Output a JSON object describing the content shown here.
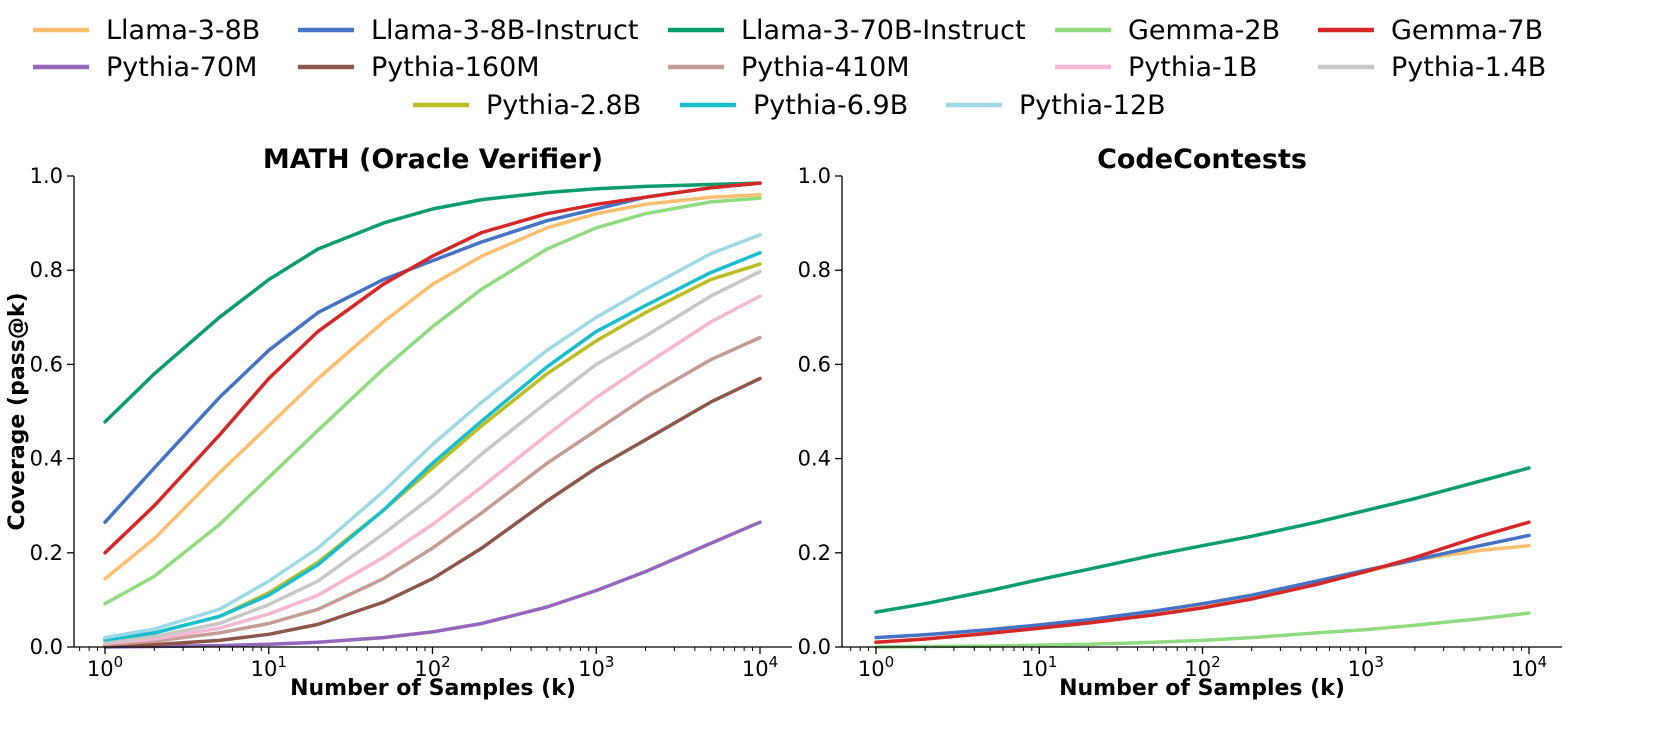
{
  "chart_data": [
    {
      "type": "line",
      "title": "MATH (Oracle Verifier)",
      "xlabel": "Number of Samples (k)",
      "ylabel": "Coverage (pass@k)",
      "xscale": "log",
      "xlim": [
        0.7,
        20000
      ],
      "ylim": [
        0,
        1.0
      ],
      "xticks": [
        {
          "base": "10",
          "exp": "0"
        },
        {
          "base": "10",
          "exp": "1"
        },
        {
          "base": "10",
          "exp": "2"
        },
        {
          "base": "10",
          "exp": "3"
        },
        {
          "base": "10",
          "exp": "4"
        }
      ],
      "yticks": [
        "0.0",
        "0.2",
        "0.4",
        "0.6",
        "0.8",
        "1.0"
      ],
      "x": [
        1,
        2,
        5,
        10,
        20,
        50,
        100,
        200,
        500,
        1000,
        2000,
        5000,
        10000
      ],
      "series": [
        {
          "name": "Llama-3-8B",
          "color": "#FDBF6F",
          "values": [
            0.145,
            0.23,
            0.37,
            0.47,
            0.57,
            0.69,
            0.77,
            0.83,
            0.89,
            0.92,
            0.94,
            0.955,
            0.96
          ]
        },
        {
          "name": "Llama-3-8B-Instruct",
          "color": "#4472C4",
          "values": [
            0.265,
            0.38,
            0.53,
            0.63,
            0.71,
            0.78,
            0.82,
            0.86,
            0.905,
            0.93,
            0.955,
            0.975,
            0.985
          ]
        },
        {
          "name": "Llama-3-70B-Instruct",
          "color": "#0A9C6E",
          "values": [
            0.478,
            0.58,
            0.7,
            0.78,
            0.845,
            0.9,
            0.93,
            0.95,
            0.965,
            0.973,
            0.978,
            0.982,
            0.985
          ]
        },
        {
          "name": "Gemma-2B",
          "color": "#90DB80",
          "values": [
            0.092,
            0.15,
            0.26,
            0.36,
            0.46,
            0.59,
            0.68,
            0.76,
            0.845,
            0.89,
            0.92,
            0.945,
            0.953
          ]
        },
        {
          "name": "Gemma-7B",
          "color": "#D62728",
          "values": [
            0.2,
            0.3,
            0.45,
            0.57,
            0.67,
            0.77,
            0.83,
            0.88,
            0.92,
            0.94,
            0.955,
            0.975,
            0.985
          ]
        },
        {
          "name": "Pythia-70M",
          "color": "#9467BD",
          "values": [
            0.0,
            0.001,
            0.003,
            0.006,
            0.01,
            0.02,
            0.032,
            0.05,
            0.085,
            0.12,
            0.16,
            0.22,
            0.265
          ]
        },
        {
          "name": "Pythia-160M",
          "color": "#8C564B",
          "values": [
            0.002,
            0.005,
            0.014,
            0.027,
            0.048,
            0.095,
            0.145,
            0.21,
            0.31,
            0.38,
            0.44,
            0.52,
            0.57
          ]
        },
        {
          "name": "Pythia-410M",
          "color": "#C49C94",
          "values": [
            0.005,
            0.012,
            0.03,
            0.05,
            0.08,
            0.145,
            0.21,
            0.285,
            0.39,
            0.46,
            0.53,
            0.61,
            0.657
          ]
        },
        {
          "name": "Pythia-1B",
          "color": "#F7B6D2",
          "values": [
            0.008,
            0.017,
            0.04,
            0.07,
            0.11,
            0.19,
            0.26,
            0.34,
            0.45,
            0.53,
            0.6,
            0.69,
            0.745
          ]
        },
        {
          "name": "Pythia-1.4B",
          "color": "#C7C7C7",
          "values": [
            0.01,
            0.022,
            0.05,
            0.09,
            0.14,
            0.24,
            0.32,
            0.41,
            0.52,
            0.6,
            0.66,
            0.745,
            0.797
          ]
        },
        {
          "name": "Pythia-2.8B",
          "color": "#BCBD22",
          "values": [
            0.015,
            0.03,
            0.065,
            0.115,
            0.18,
            0.29,
            0.38,
            0.47,
            0.58,
            0.65,
            0.71,
            0.78,
            0.813
          ]
        },
        {
          "name": "Pythia-6.9B",
          "color": "#17BECF",
          "values": [
            0.015,
            0.03,
            0.065,
            0.11,
            0.175,
            0.29,
            0.39,
            0.48,
            0.595,
            0.67,
            0.725,
            0.795,
            0.837
          ]
        },
        {
          "name": "Pythia-12B",
          "color": "#9EDAE5",
          "values": [
            0.02,
            0.038,
            0.08,
            0.14,
            0.21,
            0.33,
            0.43,
            0.52,
            0.63,
            0.7,
            0.76,
            0.835,
            0.875
          ]
        }
      ]
    },
    {
      "type": "line",
      "title": "CodeContests",
      "xlabel": "Number of Samples (k)",
      "ylabel": "",
      "xscale": "log",
      "xlim": [
        0.7,
        20000
      ],
      "ylim": [
        0,
        1.0
      ],
      "xticks": [
        {
          "base": "10",
          "exp": "0"
        },
        {
          "base": "10",
          "exp": "1"
        },
        {
          "base": "10",
          "exp": "2"
        },
        {
          "base": "10",
          "exp": "3"
        },
        {
          "base": "10",
          "exp": "4"
        }
      ],
      "yticks": [
        "0.0",
        "0.2",
        "0.4",
        "0.6",
        "0.8",
        "1.0"
      ],
      "x": [
        1,
        2,
        5,
        10,
        20,
        50,
        100,
        200,
        500,
        1000,
        2000,
        5000,
        10000
      ],
      "series": [
        {
          "name": "Llama-3-8B",
          "color": "#FDBF6F",
          "values": [
            0.01,
            0.017,
            0.03,
            0.042,
            0.053,
            0.07,
            0.085,
            0.103,
            0.135,
            0.16,
            0.185,
            0.205,
            0.215
          ]
        },
        {
          "name": "Llama-3-8B-Instruct",
          "color": "#4472C4",
          "values": [
            0.02,
            0.026,
            0.037,
            0.047,
            0.058,
            0.076,
            0.092,
            0.11,
            0.14,
            0.163,
            0.185,
            0.215,
            0.237
          ]
        },
        {
          "name": "Llama-3-70B-Instruct",
          "color": "#0A9C6E",
          "values": [
            0.074,
            0.092,
            0.12,
            0.143,
            0.165,
            0.195,
            0.215,
            0.235,
            0.265,
            0.29,
            0.315,
            0.352,
            0.38
          ]
        },
        {
          "name": "Gemma-2B",
          "color": "#90DB80",
          "values": [
            0.0,
            0.001,
            0.002,
            0.004,
            0.006,
            0.01,
            0.014,
            0.02,
            0.03,
            0.037,
            0.046,
            0.06,
            0.072
          ]
        },
        {
          "name": "Gemma-7B",
          "color": "#D62728",
          "values": [
            0.01,
            0.017,
            0.029,
            0.04,
            0.051,
            0.068,
            0.083,
            0.102,
            0.133,
            0.16,
            0.19,
            0.235,
            0.265
          ]
        }
      ]
    }
  ]
}
